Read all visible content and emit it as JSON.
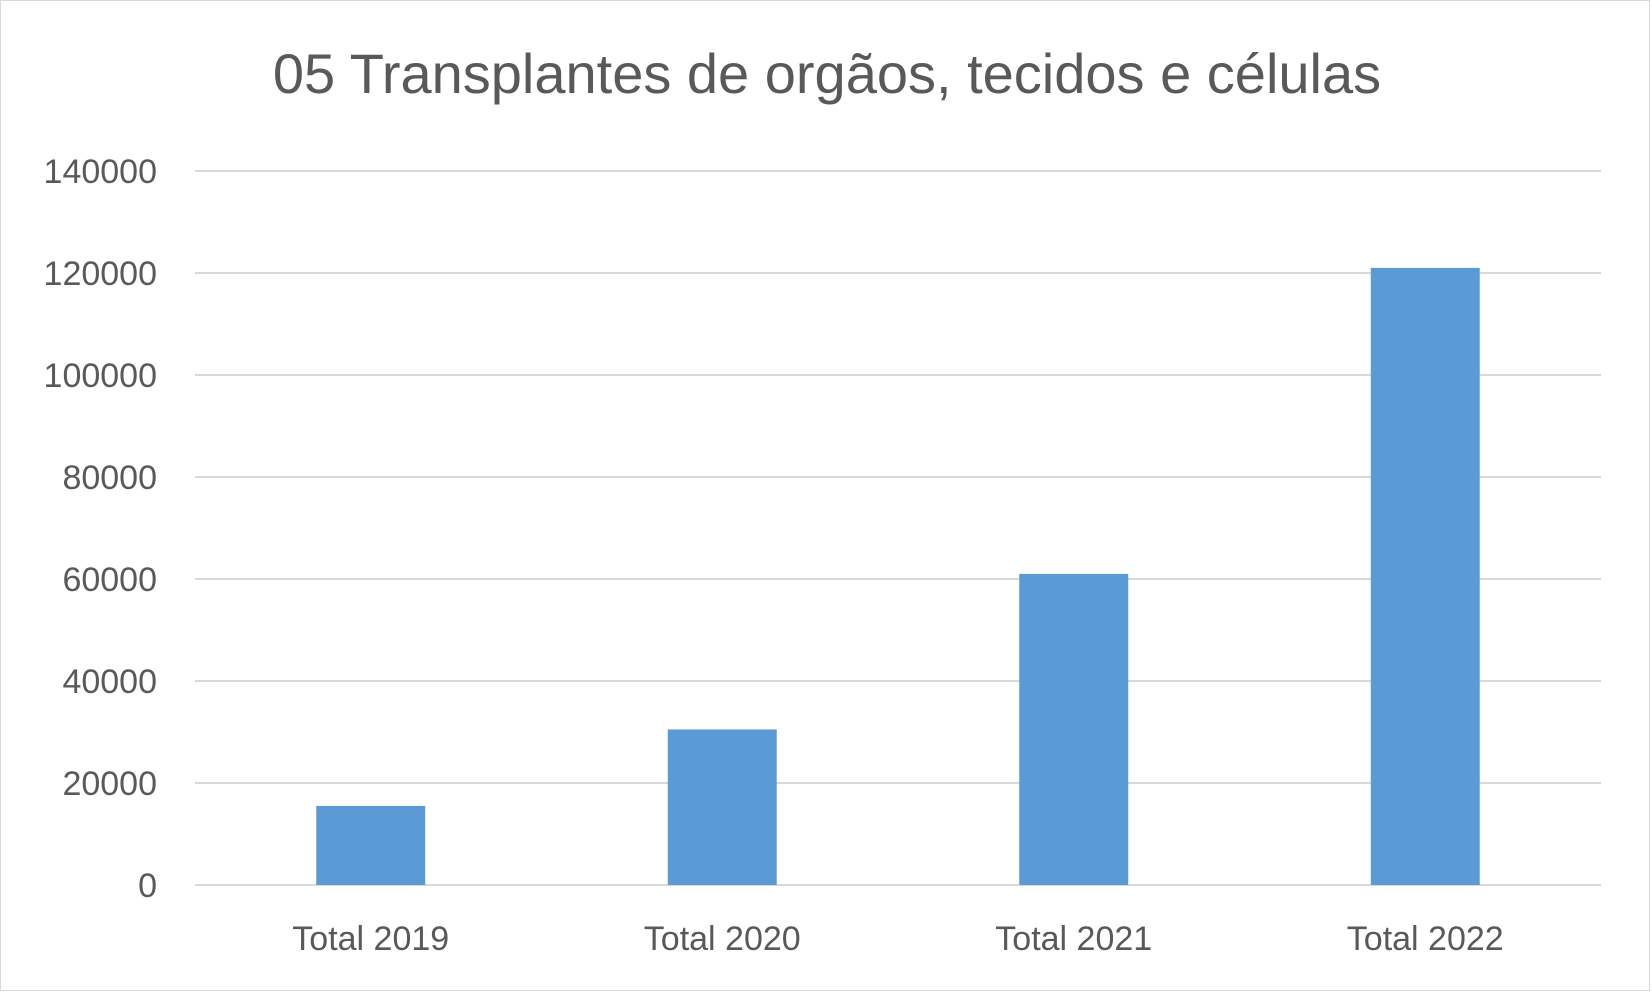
{
  "chart_data": {
    "type": "bar",
    "title": "05 Transplantes de orgãos, tecidos e células",
    "categories": [
      "Total 2019",
      "Total 2020",
      "Total 2021",
      "Total 2022"
    ],
    "values": [
      15500,
      30500,
      61000,
      121000
    ],
    "ylim": [
      0,
      140000
    ],
    "yticks": [
      0,
      20000,
      40000,
      60000,
      80000,
      100000,
      120000,
      140000
    ],
    "xlabel": "",
    "ylabel": "",
    "grid": true,
    "legend": "none",
    "colors": {
      "bar": "#5b9bd5",
      "grid": "#d9d9d9",
      "text": "#595959"
    }
  }
}
